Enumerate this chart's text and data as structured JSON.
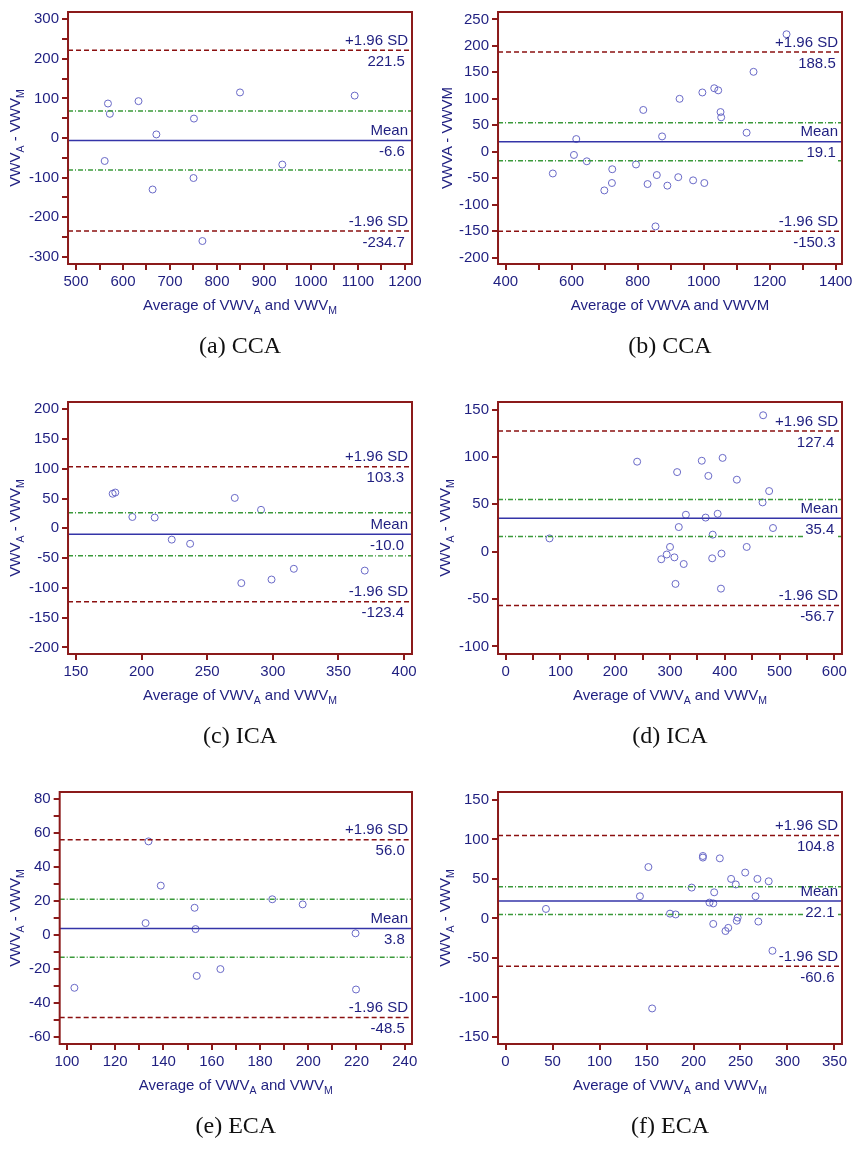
{
  "chart_data": [
    {
      "type": "scatter",
      "title": "(a) CCA",
      "xlabel": "Average of VWV$_{A}$ and VWV$_{M}$",
      "ylabel": "VWV$_{A}$ - VWV$_{M}$",
      "marker": "circle",
      "color": "#6a6ac8",
      "x": [
        568,
        572,
        633,
        671,
        751,
        849,
        1093,
        561,
        663,
        750,
        939,
        769
      ],
      "values": [
        87,
        61,
        93,
        9,
        49,
        115,
        107,
        -58,
        -130,
        -101,
        -67,
        -260
      ],
      "xlim": [
        483,
        1215
      ],
      "ylim": [
        -318,
        318
      ],
      "xticks": [
        500,
        {
          "value": 550,
          "label": null
        },
        600,
        {
          "value": 650,
          "label": null
        },
        700,
        {
          "value": 750,
          "label": null
        },
        800,
        {
          "value": 850,
          "label": null
        },
        900,
        {
          "value": 950,
          "label": null
        },
        1000,
        {
          "value": 1050,
          "label": null
        },
        1100,
        {
          "value": 1150,
          "label": null
        },
        1200
      ],
      "yticks": [
        -300,
        {
          "value": -250,
          "label": null
        },
        -200,
        {
          "value": -150,
          "label": null
        },
        -100,
        {
          "value": -50,
          "label": null
        },
        0,
        {
          "value": 50,
          "label": null
        },
        100,
        {
          "value": 150,
          "label": null
        },
        200,
        {
          "value": 250,
          "label": null
        },
        300
      ],
      "ref_lines": [
        {
          "axis": "y",
          "value": 221.5,
          "label": "+1.96 SD",
          "color": "#8b1010",
          "line_style": "dashed"
        },
        {
          "axis": "y",
          "value": -6.6,
          "label": "Mean",
          "color": "#3434a8",
          "line_style": "solid"
        },
        {
          "axis": "y",
          "value": -234.7,
          "label": "-1.96 SD",
          "color": "#8b1010",
          "line_style": "dashed"
        },
        {
          "axis": "y",
          "value": 68,
          "color": "#3a9a3a",
          "line_style": "dotted"
        },
        {
          "axis": "y",
          "value": -81,
          "color": "#3a9a3a",
          "line_style": "dotted"
        }
      ],
      "annotations": [
        {
          "text": "221.5",
          "x": 1200,
          "y": 221.5
        },
        {
          "text": "-6.6",
          "x": 1200,
          "y": -6.6
        },
        {
          "text": "-234.7",
          "x": 1200,
          "y": -234.7
        }
      ]
    },
    {
      "type": "scatter",
      "title": "(b) CCA",
      "xlabel": "Average of VWVA and VWVM",
      "ylabel": "VWVA - VWVM",
      "marker": "circle",
      "color": "#6a6ac8",
      "x": [
        1251,
        1151,
        1032,
        1044,
        996,
        927,
        817,
        1051,
        1053,
        1130,
        874,
        614,
        607,
        646,
        543,
        723,
        795,
        858,
        722,
        699,
        830,
        890,
        923,
        968,
        1002,
        854
      ],
      "values": [
        222,
        151,
        120,
        116,
        112,
        100,
        79,
        75,
        65,
        36,
        29,
        24,
        -6,
        -18,
        -41,
        -33,
        -24,
        -44,
        -59,
        -73,
        -61,
        -64,
        -48,
        -54,
        -59,
        -141
      ],
      "xlim": [
        377,
        1419
      ],
      "ylim": [
        -212,
        264
      ],
      "xticks": [
        400,
        {
          "value": 500,
          "label": null
        },
        600,
        {
          "value": 700,
          "label": null
        },
        800,
        {
          "value": 900,
          "label": null
        },
        1000,
        {
          "value": 1100,
          "label": null
        },
        1200,
        {
          "value": 1300,
          "label": null
        },
        1400
      ],
      "yticks": [
        -200,
        -150,
        -100,
        -50,
        0,
        50,
        100,
        150,
        200,
        250
      ],
      "ref_lines": [
        {
          "axis": "y",
          "value": 188.5,
          "label": "+1.96 SD",
          "color": "#8b1010",
          "line_style": "dashed"
        },
        {
          "axis": "y",
          "value": 19.1,
          "label": "Mean",
          "color": "#3434a8",
          "line_style": "solid"
        },
        {
          "axis": "y",
          "value": -150.3,
          "label": "-1.96 SD",
          "color": "#8b1010",
          "line_style": "dashed"
        },
        {
          "axis": "y",
          "value": 55,
          "color": "#3a9a3a",
          "line_style": "dotted"
        },
        {
          "axis": "y",
          "value": -17,
          "color": "#3a9a3a",
          "line_style": "dotted"
        }
      ],
      "annotations": [
        {
          "text": "188.5",
          "x": 1400,
          "y": 188.5
        },
        {
          "text": "19.1",
          "x": 1400,
          "y": 19.1
        },
        {
          "text": "-150.3",
          "x": 1400,
          "y": -150.3
        }
      ]
    },
    {
      "type": "scatter",
      "title": "(c) ICA",
      "xlabel": "Average of VWV$_{A}$ and VWV$_{M}$",
      "ylabel": "VWV$_{A}$ - VWV$_{M}$",
      "marker": "circle",
      "color": "#6a6ac8",
      "x": [
        178,
        180,
        193,
        210,
        223,
        237,
        271,
        291,
        276,
        299,
        316,
        370
      ],
      "values": [
        58,
        60,
        19,
        18,
        -19,
        -26,
        51,
        31,
        -92,
        -86,
        -68,
        -71
      ],
      "xlim": [
        144,
        406
      ],
      "ylim": [
        -211,
        212
      ],
      "xticks": [
        150,
        200,
        250,
        300,
        350,
        400
      ],
      "yticks": [
        -200,
        -150,
        -100,
        -50,
        0,
        50,
        100,
        150,
        200
      ],
      "ref_lines": [
        {
          "axis": "y",
          "value": 103.3,
          "label": "+1.96 SD",
          "color": "#8b1010",
          "line_style": "dashed"
        },
        {
          "axis": "y",
          "value": -10.0,
          "label": "Mean",
          "color": "#3434a8",
          "line_style": "solid"
        },
        {
          "axis": "y",
          "value": -123.4,
          "label": "-1.96 SD",
          "color": "#8b1010",
          "line_style": "dashed"
        },
        {
          "axis": "y",
          "value": 26,
          "color": "#3a9a3a",
          "line_style": "dotted"
        },
        {
          "axis": "y",
          "value": -46,
          "color": "#3a9a3a",
          "line_style": "dotted"
        }
      ],
      "annotations": [
        {
          "text": "103.3",
          "x": 400,
          "y": 103.3
        },
        {
          "text": "-10.0",
          "x": 400,
          "y": -10.0
        },
        {
          "text": "-123.4",
          "x": 400,
          "y": -123.4
        }
      ]
    },
    {
      "type": "scatter",
      "title": "(d) ICA",
      "xlabel": "Average of VWV$_{A}$ and VWV$_{M}$",
      "ylabel": "VWV$_{A}$ - VWV$_{M}$",
      "marker": "circle",
      "color": "#6a6ac8",
      "x": [
        470,
        240,
        313,
        358,
        396,
        370,
        422,
        481,
        469,
        329,
        365,
        387,
        316,
        488,
        378,
        80,
        300,
        440,
        294,
        284,
        308,
        394,
        377,
        325,
        310,
        393
      ],
      "values": [
        144,
        95,
        84,
        96,
        99,
        80,
        76,
        64,
        52,
        39,
        36,
        40,
        26,
        25,
        18,
        14,
        5,
        5,
        -3,
        -8,
        -6,
        -2,
        -7,
        -13,
        -34,
        -39
      ],
      "xlim": [
        -14,
        614
      ],
      "ylim": [
        -108,
        158
      ],
      "xticks": [
        0,
        {
          "value": 50,
          "label": null
        },
        100,
        {
          "value": 150,
          "label": null
        },
        200,
        {
          "value": 250,
          "label": null
        },
        300,
        {
          "value": 350,
          "label": null
        },
        400,
        {
          "value": 450,
          "label": null
        },
        500,
        {
          "value": 550,
          "label": null
        },
        600
      ],
      "yticks": [
        -100,
        -50,
        0,
        50,
        100,
        150
      ],
      "ref_lines": [
        {
          "axis": "y",
          "value": 127.4,
          "label": "+1.96 SD",
          "color": "#8b1010",
          "line_style": "dashed"
        },
        {
          "axis": "y",
          "value": 35.4,
          "label": "Mean",
          "color": "#3434a8",
          "line_style": "solid"
        },
        {
          "axis": "y",
          "value": -56.7,
          "label": "-1.96 SD",
          "color": "#8b1010",
          "line_style": "dashed"
        },
        {
          "axis": "y",
          "value": 55,
          "color": "#3a9a3a",
          "line_style": "dotted"
        },
        {
          "axis": "y",
          "value": 16,
          "color": "#3a9a3a",
          "line_style": "dotted"
        }
      ],
      "annotations": [
        {
          "text": "127.4",
          "x": 600,
          "y": 127.4
        },
        {
          "text": "35.4",
          "x": 600,
          "y": 35.4
        },
        {
          "text": "-56.7",
          "x": 600,
          "y": -56.7
        }
      ]
    },
    {
      "type": "scatter",
      "title": "(e) ECA",
      "xlabel": "Average of VWV$_{A}$ and VWV$_{M}$",
      "ylabel": "VWV$_{A}$ - VWV$_{M}$",
      "marker": "circle",
      "color": "#6a6ac8",
      "x": [
        133.8,
        138.9,
        132.6,
        152.9,
        153.3,
        185.1,
        197.7,
        219.6,
        103.1,
        153.8,
        163.6,
        219.8
      ],
      "values": [
        55,
        29,
        7,
        16,
        3.5,
        21,
        18,
        1,
        -31,
        -24,
        -20,
        -32
      ],
      "xlim": [
        97,
        243
      ],
      "ylim": [
        -64,
        84
      ],
      "xticks": [
        100,
        {
          "value": 110,
          "label": null
        },
        120,
        {
          "value": 130,
          "label": null
        },
        140,
        {
          "value": 150,
          "label": null
        },
        160,
        {
          "value": 170,
          "label": null
        },
        180,
        {
          "value": 190,
          "label": null
        },
        200,
        {
          "value": 210,
          "label": null
        },
        220,
        {
          "value": 230,
          "label": null
        },
        240
      ],
      "yticks": [
        -60,
        {
          "value": -50,
          "label": null
        },
        -40,
        {
          "value": -30,
          "label": null
        },
        -20,
        {
          "value": -10,
          "label": null
        },
        0,
        {
          "value": 10,
          "label": null
        },
        20,
        {
          "value": 30,
          "label": null
        },
        40,
        {
          "value": 50,
          "label": null
        },
        60,
        {
          "value": 70,
          "label": null
        },
        80
      ],
      "ref_lines": [
        {
          "axis": "y",
          "value": 56.0,
          "label": "+1.96 SD",
          "color": "#8b1010",
          "line_style": "dashed"
        },
        {
          "axis": "y",
          "value": 3.8,
          "label": "Mean",
          "color": "#3434a8",
          "line_style": "solid"
        },
        {
          "axis": "y",
          "value": -48.5,
          "label": "-1.96 SD",
          "color": "#8b1010",
          "line_style": "dashed"
        },
        {
          "axis": "y",
          "value": 21,
          "color": "#3a9a3a",
          "line_style": "dotted"
        },
        {
          "axis": "y",
          "value": -13,
          "color": "#3a9a3a",
          "line_style": "dotted"
        }
      ],
      "annotations": [
        {
          "text": "56.0",
          "x": 240,
          "y": 56.0
        },
        {
          "text": "3.8",
          "x": 240,
          "y": 3.8
        },
        {
          "text": "-48.5",
          "x": 240,
          "y": -48.5
        }
      ]
    },
    {
      "type": "scatter",
      "title": "(f) ECA",
      "xlabel": "Average of VWV$_{A}$ and VWV$_{M}$",
      "ylabel": "VWV$_{A}$ - VWV$_{M}$",
      "marker": "circle",
      "color": "#6a6ac8",
      "x": [
        43,
        152,
        143,
        210,
        210,
        228,
        156,
        175,
        181,
        198,
        222,
        217,
        221,
        221,
        240,
        245,
        255,
        268,
        280,
        266,
        247,
        246,
        269,
        234,
        237,
        284
      ],
      "values": [
        12,
        65,
        28,
        79,
        77,
        76,
        -114,
        6,
        5,
        39,
        33,
        20,
        19,
        -7,
        50,
        43,
        58,
        50,
        47,
        28,
        1,
        -3,
        -4,
        -16,
        -12,
        -41
      ],
      "xlim": [
        -8,
        358
      ],
      "ylim": [
        -159,
        160
      ],
      "xticks": [
        0,
        50,
        100,
        150,
        200,
        250,
        300,
        350
      ],
      "yticks": [
        -150,
        -100,
        -50,
        0,
        50,
        100,
        150
      ],
      "ref_lines": [
        {
          "axis": "y",
          "value": 104.8,
          "label": "+1.96 SD",
          "color": "#8b1010",
          "line_style": "dashed"
        },
        {
          "axis": "y",
          "value": 22.1,
          "label": "Mean",
          "color": "#3434a8",
          "line_style": "solid"
        },
        {
          "axis": "y",
          "value": -60.6,
          "label": "-1.96 SD",
          "color": "#8b1010",
          "line_style": "dashed"
        },
        {
          "axis": "y",
          "value": 40,
          "color": "#3a9a3a",
          "line_style": "dotted"
        },
        {
          "axis": "y",
          "value": 5,
          "color": "#3a9a3a",
          "line_style": "dotted"
        }
      ],
      "annotations": [
        {
          "text": "104.8",
          "x": 350,
          "y": 104.8
        },
        {
          "text": "22.1",
          "x": 350,
          "y": 22.1
        },
        {
          "text": "-60.6",
          "x": 350,
          "y": -60.6
        }
      ]
    }
  ]
}
